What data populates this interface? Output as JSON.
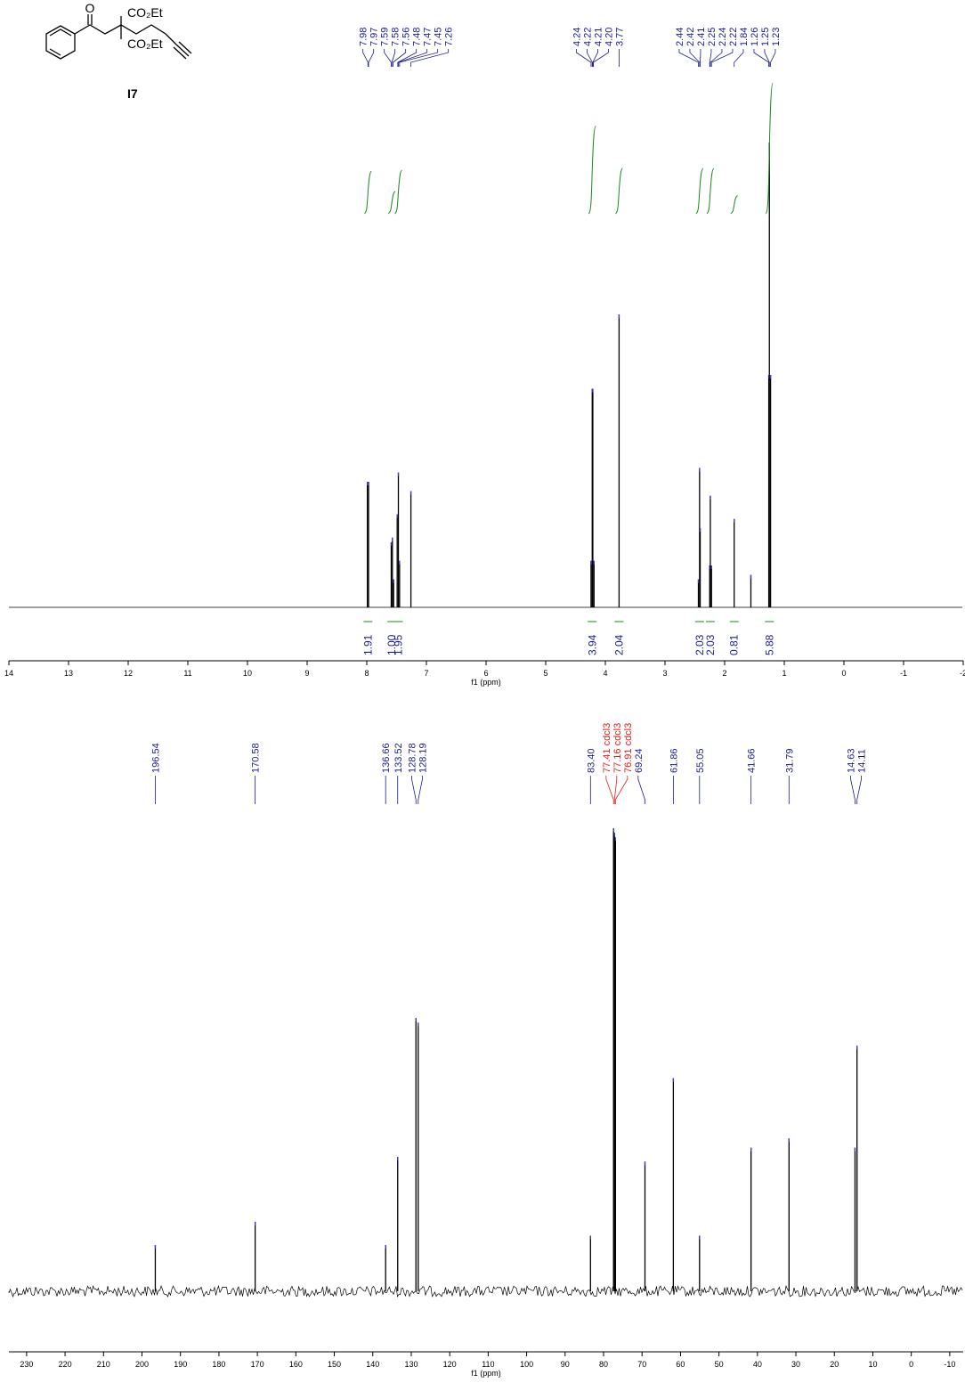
{
  "structure": {
    "label": "I7",
    "atoms": [
      "O",
      "CO₂Et",
      "CO₂Et"
    ]
  },
  "chart_data": [
    {
      "type": "nmr",
      "xlabel": "f1 (ppm)",
      "xlim": [
        14,
        -2
      ],
      "xticks": [
        14,
        13,
        12,
        11,
        10,
        9,
        8,
        7,
        6,
        5,
        4,
        3,
        2,
        1,
        0,
        -1,
        -2
      ],
      "ylim": [
        0,
        100
      ],
      "peaks": {
        "x": [
          7.99,
          7.97,
          7.59,
          7.57,
          7.55,
          7.49,
          7.47,
          7.45,
          7.26,
          4.24,
          4.22,
          4.21,
          4.19,
          3.77,
          2.44,
          2.42,
          2.41,
          2.25,
          2.24,
          2.22,
          1.84,
          1.56,
          1.26,
          1.25,
          1.23
        ],
        "values": [
          27,
          27,
          14,
          15,
          6,
          20,
          29,
          10,
          25,
          10,
          47,
          47,
          10,
          63,
          6,
          30,
          17,
          9,
          24,
          9,
          19,
          7,
          50,
          100,
          50
        ]
      },
      "peak_labels": {
        "values": [
          7.98,
          7.97,
          7.59,
          7.58,
          7.56,
          7.48,
          7.47,
          7.45,
          7.26,
          4.24,
          4.22,
          4.21,
          4.2,
          3.77,
          2.44,
          2.42,
          2.41,
          2.25,
          2.24,
          2.22,
          1.84,
          1.26,
          1.25,
          1.23
        ],
        "value_labels": [
          "7.98",
          "7.97",
          "7.59",
          "7.58",
          "7.56",
          "7.48",
          "7.47",
          "7.45",
          "7.26",
          "4.24",
          "4.22",
          "4.21",
          "4.20",
          "3.77",
          "2.44",
          "2.42",
          "2.41",
          "2.25",
          "2.24",
          "2.22",
          "1.84",
          "1.26",
          "1.25",
          "1.23"
        ],
        "colors": [
          "#1c1c8c",
          "#1c1c8c",
          "#1c1c8c",
          "#1c1c8c",
          "#1c1c8c",
          "#1c1c8c",
          "#1c1c8c",
          "#1c1c8c",
          "#1c1c8c",
          "#1c1c8c",
          "#1c1c8c",
          "#1c1c8c",
          "#1c1c8c",
          "#1c1c8c",
          "#1c1c8c",
          "#1c1c8c",
          "#1c1c8c",
          "#1c1c8c",
          "#1c1c8c",
          "#1c1c8c",
          "#1c1c8c",
          "#1c1c8c",
          "#1c1c8c",
          "#1c1c8c"
        ]
      },
      "integrals": {
        "x": [
          7.98,
          7.58,
          7.47,
          4.22,
          3.77,
          2.42,
          2.24,
          1.84,
          1.25
        ],
        "values": [
          1.91,
          1.0,
          1.95,
          3.94,
          2.04,
          2.03,
          2.03,
          0.81,
          5.88
        ],
        "value_labels": [
          "1.91",
          "1.00",
          "1.95",
          "3.94",
          "2.04",
          "2.03",
          "2.03",
          "0.81",
          "5.88"
        ]
      }
    },
    {
      "type": "nmr",
      "xlabel": "f1 (ppm)",
      "xlim": [
        234.6,
        -13.5
      ],
      "xticks": [
        230,
        220,
        210,
        200,
        190,
        180,
        170,
        160,
        150,
        140,
        130,
        120,
        110,
        100,
        90,
        80,
        70,
        60,
        50,
        40,
        30,
        20,
        10,
        0,
        -10
      ],
      "ylim": [
        0,
        100
      ],
      "peaks": {
        "x": [
          196.54,
          170.58,
          136.66,
          133.52,
          128.78,
          128.19,
          83.4,
          77.41,
          77.16,
          76.91,
          69.24,
          61.86,
          55.05,
          41.66,
          31.79,
          14.63,
          14.11
        ],
        "values": [
          10,
          15,
          10,
          29,
          59,
          58,
          12,
          100,
          99,
          98,
          28,
          46,
          12,
          31,
          33,
          31,
          53
        ]
      },
      "peak_labels": {
        "values": [
          196.54,
          170.58,
          136.66,
          133.52,
          128.78,
          128.19,
          83.4,
          77.41,
          77.16,
          76.91,
          69.24,
          61.86,
          55.05,
          41.66,
          31.79,
          14.63,
          14.11
        ],
        "value_labels": [
          "196.54",
          "170.58",
          "136.66",
          "133.52",
          "128.78",
          "128.19",
          "83.40",
          "77.41 cdcl3",
          "77.16 cdcl3",
          "76.91 cdcl3",
          "69.24",
          "61.86",
          "55.05",
          "41.66",
          "31.79",
          "14.63",
          "14.11"
        ],
        "colors": [
          "#1c1c8c",
          "#1c1c8c",
          "#1c1c8c",
          "#1c1c8c",
          "#1c1c8c",
          "#1c1c8c",
          "#1c1c8c",
          "#e0201c",
          "#e0201c",
          "#e0201c",
          "#1c1c8c",
          "#1c1c8c",
          "#1c1c8c",
          "#1c1c8c",
          "#1c1c8c",
          "#1c1c8c",
          "#1c1c8c"
        ]
      }
    }
  ]
}
